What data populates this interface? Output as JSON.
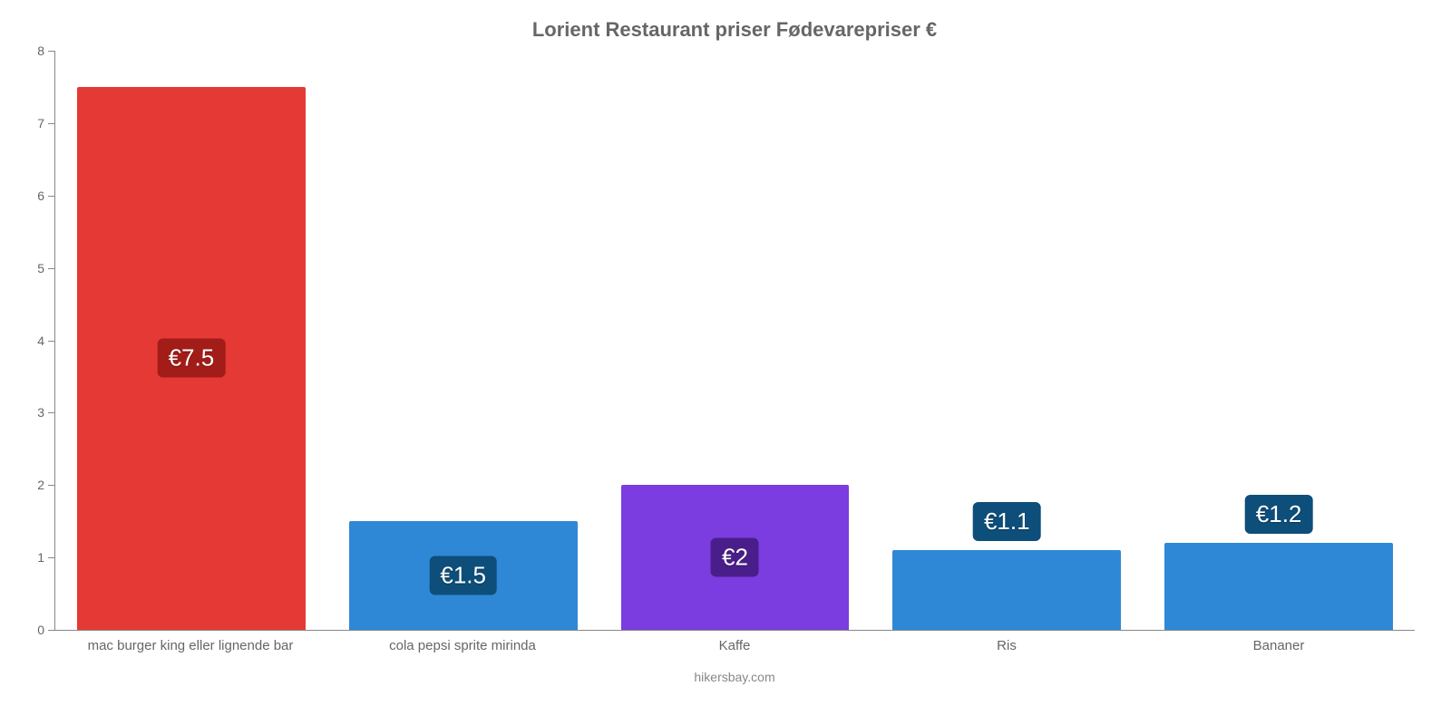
{
  "chart": {
    "type": "bar",
    "title": "Lorient Restaurant priser Fødevarepriser €",
    "title_fontsize": 22,
    "title_color": "#666666",
    "background_color": "#ffffff",
    "axis_color": "#888888",
    "tick_label_color": "#666666",
    "credit": "hikersbay.com",
    "ylim": [
      0,
      8
    ],
    "ytick_step": 1,
    "yticks": [
      0,
      1,
      2,
      3,
      4,
      5,
      6,
      7,
      8
    ],
    "bar_width": 0.84,
    "categories": [
      "mac burger king eller lignende bar",
      "cola pepsi sprite mirinda",
      "Kaffe",
      "Ris",
      "Bananer"
    ],
    "values": [
      7.5,
      1.5,
      2,
      1.1,
      1.2
    ],
    "value_labels": [
      "€7.5",
      "€1.5",
      "€2",
      "€1.1",
      "€1.2"
    ],
    "bar_colors": [
      "#e53935",
      "#2f88d6",
      "#7b3ce0",
      "#2f88d6",
      "#2f88d6"
    ],
    "label_bg_colors": [
      "#a21c18",
      "#0d4e7a",
      "#4a1e8a",
      "#0d4e7a",
      "#0d4e7a"
    ],
    "label_fontsize": 26,
    "label_color": "#ffffff",
    "label_position_threshold": 1.4,
    "xlabel_fontsize": 15
  }
}
